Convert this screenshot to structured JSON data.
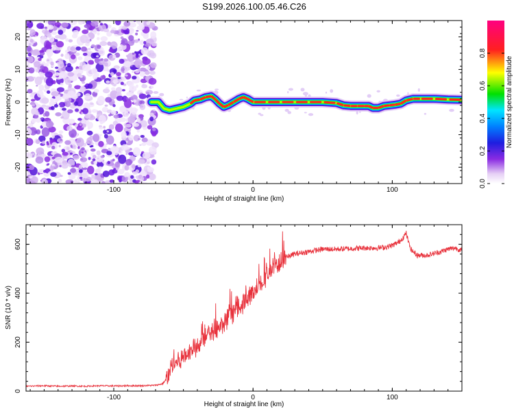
{
  "title": "S199.2026.100.05.46.C26",
  "chart_data": [
    {
      "type": "heatmap",
      "xlabel": "Height of straight line (km)",
      "ylabel": "Frequency (Hz)",
      "xlim": [
        -163,
        150
      ],
      "ylim": [
        -25,
        25
      ],
      "xticks": [
        -100,
        0,
        100
      ],
      "yticks": [
        -20,
        -10,
        0,
        10,
        20
      ],
      "xtick_labels": [
        "-100",
        "0",
        "100"
      ],
      "ytick_labels": [
        "-20",
        "-10",
        "0",
        "10",
        "20"
      ],
      "noise_region_x": [
        -163,
        -73
      ],
      "ridge": {
        "x": [
          -73,
          -68,
          -64,
          -60,
          -55,
          -50,
          -45,
          -42,
          -38,
          -34,
          -30,
          -27,
          -24,
          -21,
          -18,
          -14,
          -10,
          -7,
          -4,
          -2,
          0,
          10,
          20,
          30,
          40,
          50,
          60,
          65,
          70,
          75,
          80,
          83,
          86,
          90,
          94,
          98,
          102,
          106,
          110,
          115,
          120,
          130,
          140,
          150
        ],
        "y": [
          0,
          0,
          -2,
          -2.5,
          -2,
          -1.5,
          -0.5,
          0.5,
          0.8,
          1.5,
          1.8,
          0.8,
          -0.5,
          -1.5,
          -1,
          0,
          1,
          1.5,
          1,
          0.5,
          0,
          0,
          0,
          0,
          0,
          0,
          -0.3,
          -1,
          -1.2,
          -1.2,
          -1.2,
          -1.2,
          -1.8,
          -1.8,
          -1.2,
          -1,
          -0.8,
          -0.5,
          0.5,
          1,
          1,
          1,
          0.8,
          0.7
        ]
      },
      "colorbar": {
        "label": "Normalized spectral amplitude",
        "range": [
          0,
          1
        ],
        "ticks": [
          0.0,
          0.2,
          0.4,
          0.6,
          0.8
        ],
        "tick_labels": [
          "0.0",
          "0.2",
          "0.4",
          "0.6",
          "0.8"
        ],
        "colors": [
          "#ffffff",
          "#e6d0f5",
          "#8a2be2",
          "#1e1ee0",
          "#00e5ff",
          "#00e000",
          "#ffff00",
          "#ff2020",
          "#ff0080"
        ]
      }
    },
    {
      "type": "line",
      "xlabel": "Height of straight line (km)",
      "ylabel": "SNR (10 * v/v)",
      "xlim": [
        -163,
        150
      ],
      "ylim": [
        0,
        680
      ],
      "xticks": [
        -100,
        0,
        100
      ],
      "yticks": [
        0,
        200,
        400,
        600
      ],
      "xtick_labels": [
        "-100",
        "0",
        "100"
      ],
      "ytick_labels": [
        "0",
        "200",
        "400",
        "600"
      ],
      "color": "#e8323c",
      "series": [
        {
          "name": "SNR",
          "x": [
            -163,
            -150,
            -140,
            -130,
            -120,
            -110,
            -100,
            -90,
            -80,
            -70,
            -65,
            -62,
            -60,
            -58,
            -55,
            -52,
            -50,
            -45,
            -40,
            -35,
            -30,
            -25,
            -20,
            -15,
            -10,
            -5,
            0,
            5,
            10,
            15,
            20,
            25,
            30,
            40,
            50,
            60,
            70,
            80,
            90,
            95,
            100,
            105,
            108,
            110,
            112,
            114,
            118,
            125,
            135,
            140,
            145,
            150
          ],
          "y": [
            20,
            22,
            20,
            21,
            20,
            22,
            21,
            22,
            22,
            24,
            30,
            50,
            75,
            100,
            120,
            130,
            140,
            165,
            190,
            215,
            235,
            255,
            280,
            310,
            340,
            375,
            405,
            440,
            475,
            505,
            530,
            550,
            560,
            570,
            580,
            580,
            582,
            585,
            585,
            588,
            595,
            610,
            630,
            645,
            600,
            575,
            555,
            555,
            570,
            580,
            585,
            575
          ]
        }
      ]
    }
  ]
}
